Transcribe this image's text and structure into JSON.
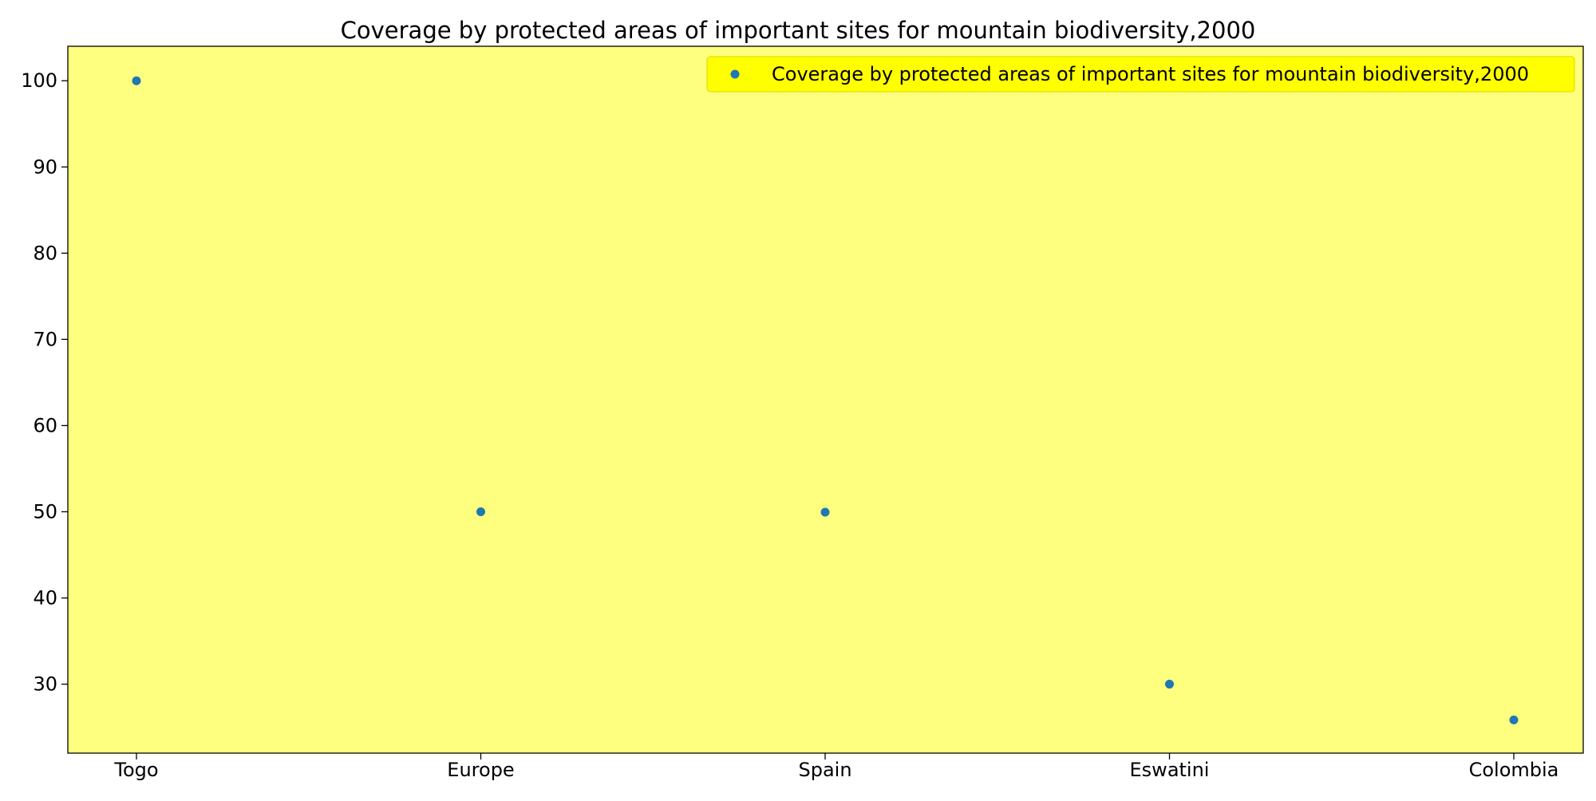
{
  "chart_data": {
    "type": "scatter",
    "title": "Coverage by protected areas of important sites for mountain biodiversity,2000",
    "xlabel": "",
    "ylabel": "",
    "categories": [
      "Togo",
      "Europe",
      "Spain",
      "Eswatini",
      "Colombia"
    ],
    "series": [
      {
        "name": "Coverage by protected areas of important sites for mountain biodiversity,2000",
        "values": [
          100,
          50,
          49.95,
          30,
          25.85
        ]
      }
    ],
    "ylim": [
      22,
      104
    ],
    "yticks": [
      30,
      40,
      50,
      60,
      70,
      80,
      90,
      100
    ],
    "grid": false,
    "legend_position": "top-right",
    "colors": {
      "plot_background": "#ffff7f",
      "legend_background": "#ffff00",
      "marker": "#1f77b4"
    }
  }
}
